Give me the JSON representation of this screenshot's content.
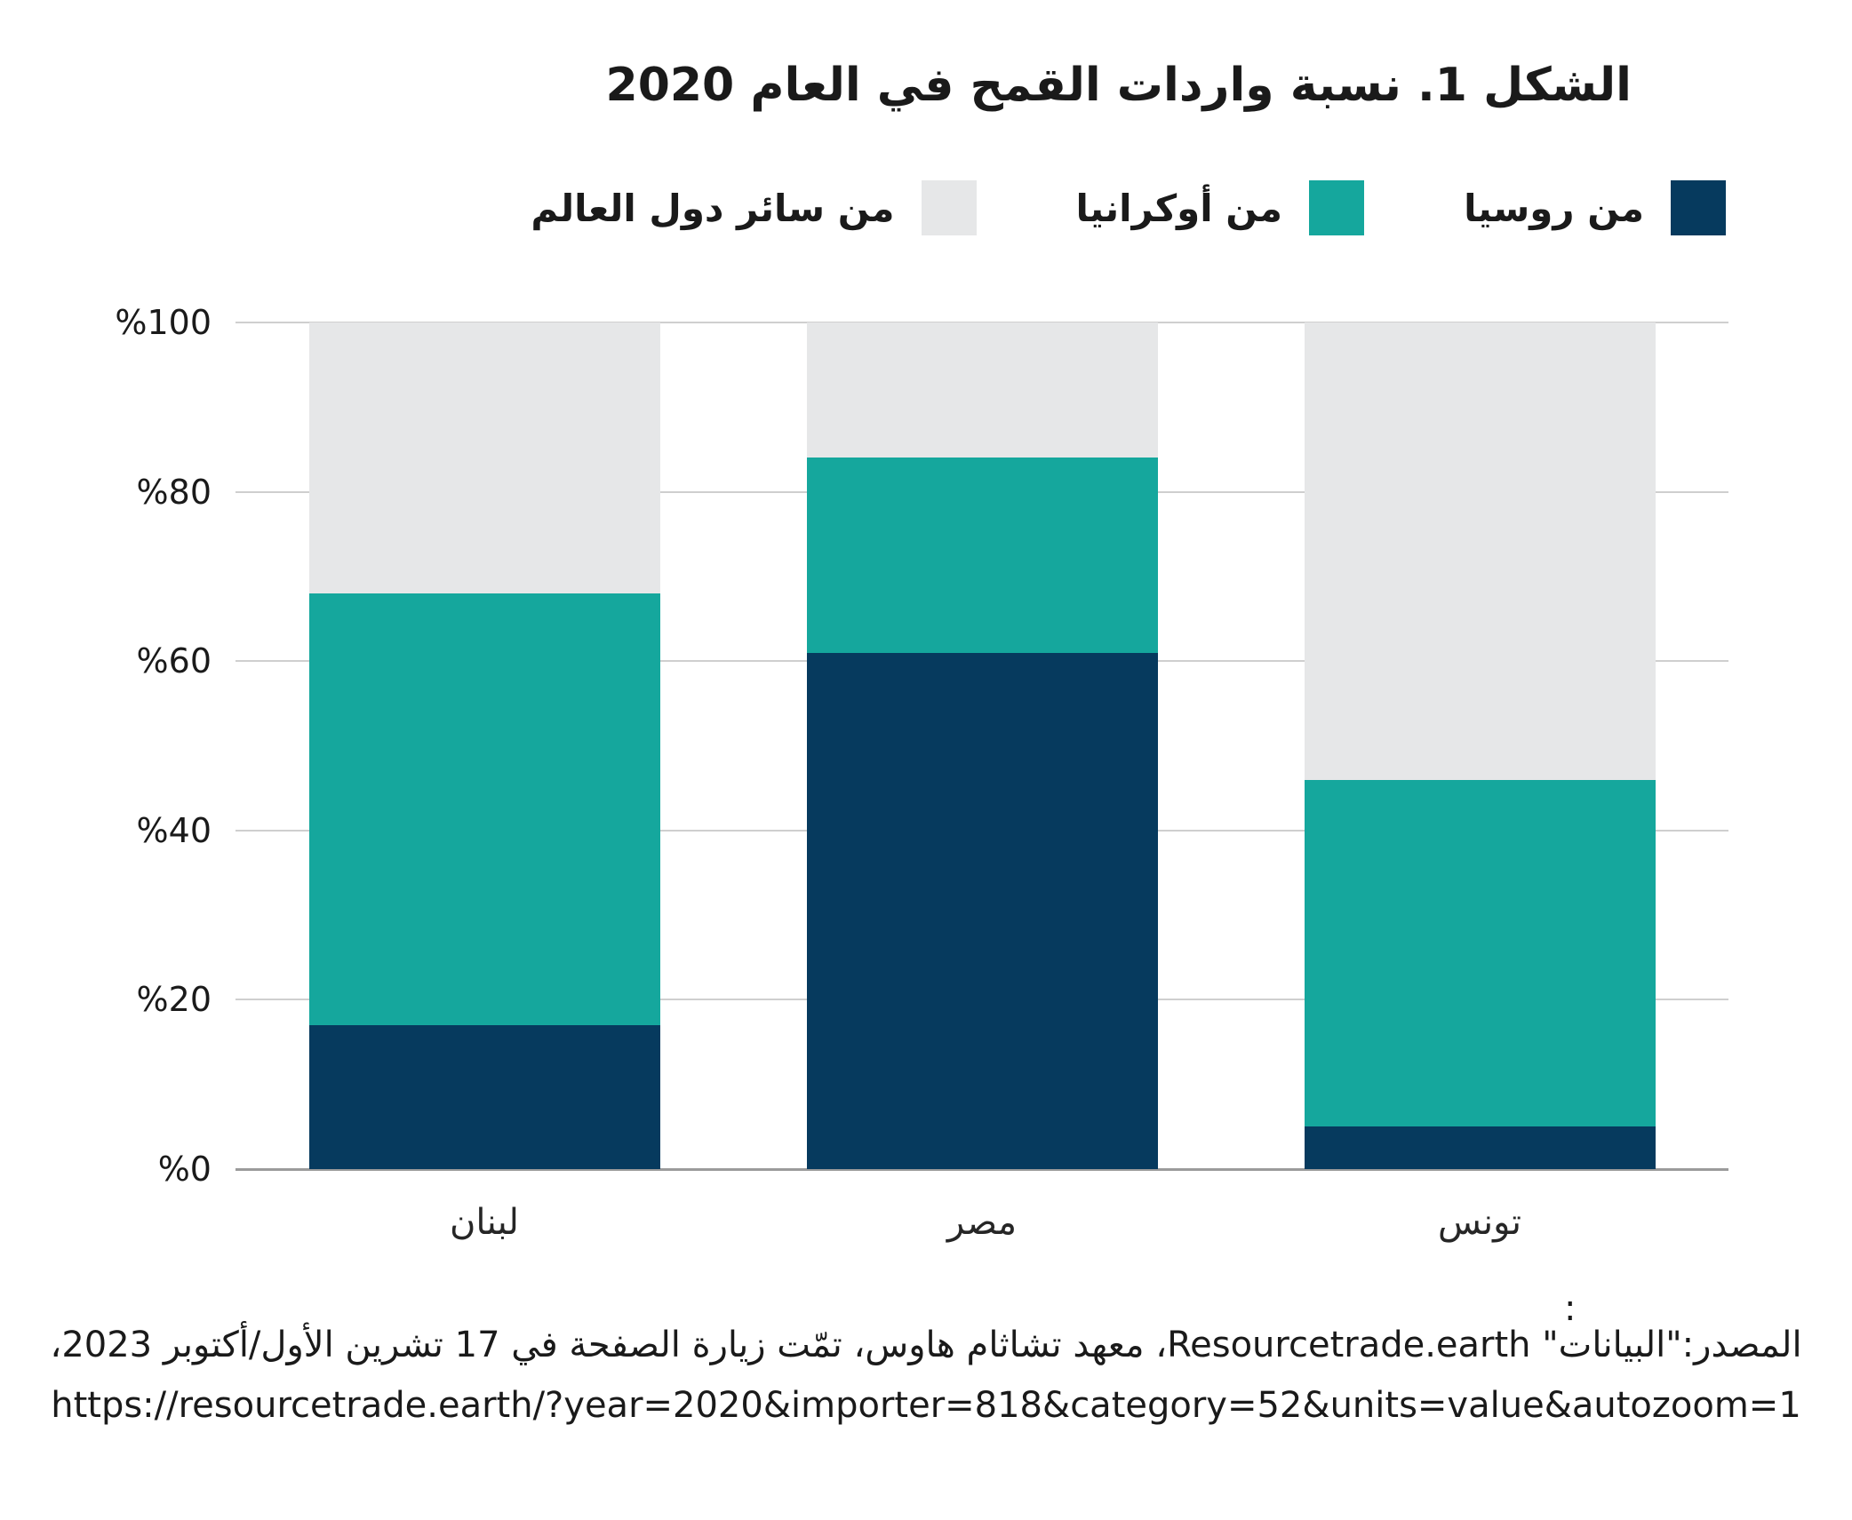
{
  "chart_data": {
    "type": "bar",
    "stacked": true,
    "rtl": true,
    "title": "الشكل 1. نسبة واردات القمح في العام 2020",
    "categories": [
      "لبنان",
      "مصر",
      "تونس"
    ],
    "series": [
      {
        "name": "من روسيا",
        "color": "#063a5e",
        "values": [
          17,
          61,
          5
        ]
      },
      {
        "name": "من أوكرانيا",
        "color": "#15a79d",
        "values": [
          51,
          23,
          41
        ]
      },
      {
        "name": "من سائر دول العالم",
        "color": "#e6e7e8",
        "values": [
          32,
          16,
          54
        ]
      }
    ],
    "xlabel": "",
    "ylabel": "",
    "ylim": [
      0,
      100
    ],
    "ytick_labels": [
      "%0",
      "%20",
      "%40",
      "%60",
      "%80",
      "%100"
    ],
    "grid": true,
    "legend_position": "top-right",
    "colors": {
      "gridline": "#cfcfcf",
      "axisline": "#9b9b9b",
      "text": "#1a1a1a"
    }
  },
  "footer": {
    "stray_colon": ":",
    "source": "المصدر:\"البيانات\" Resourcetrade.earth، معهد تشاثام هاوس، تمّت زيارة الصفحة في 17 تشرين الأول/أكتوبر 2023،",
    "url": "https://resourcetrade.earth/?year=2020&importer=818&category=52&units=value&autozoom=1"
  }
}
